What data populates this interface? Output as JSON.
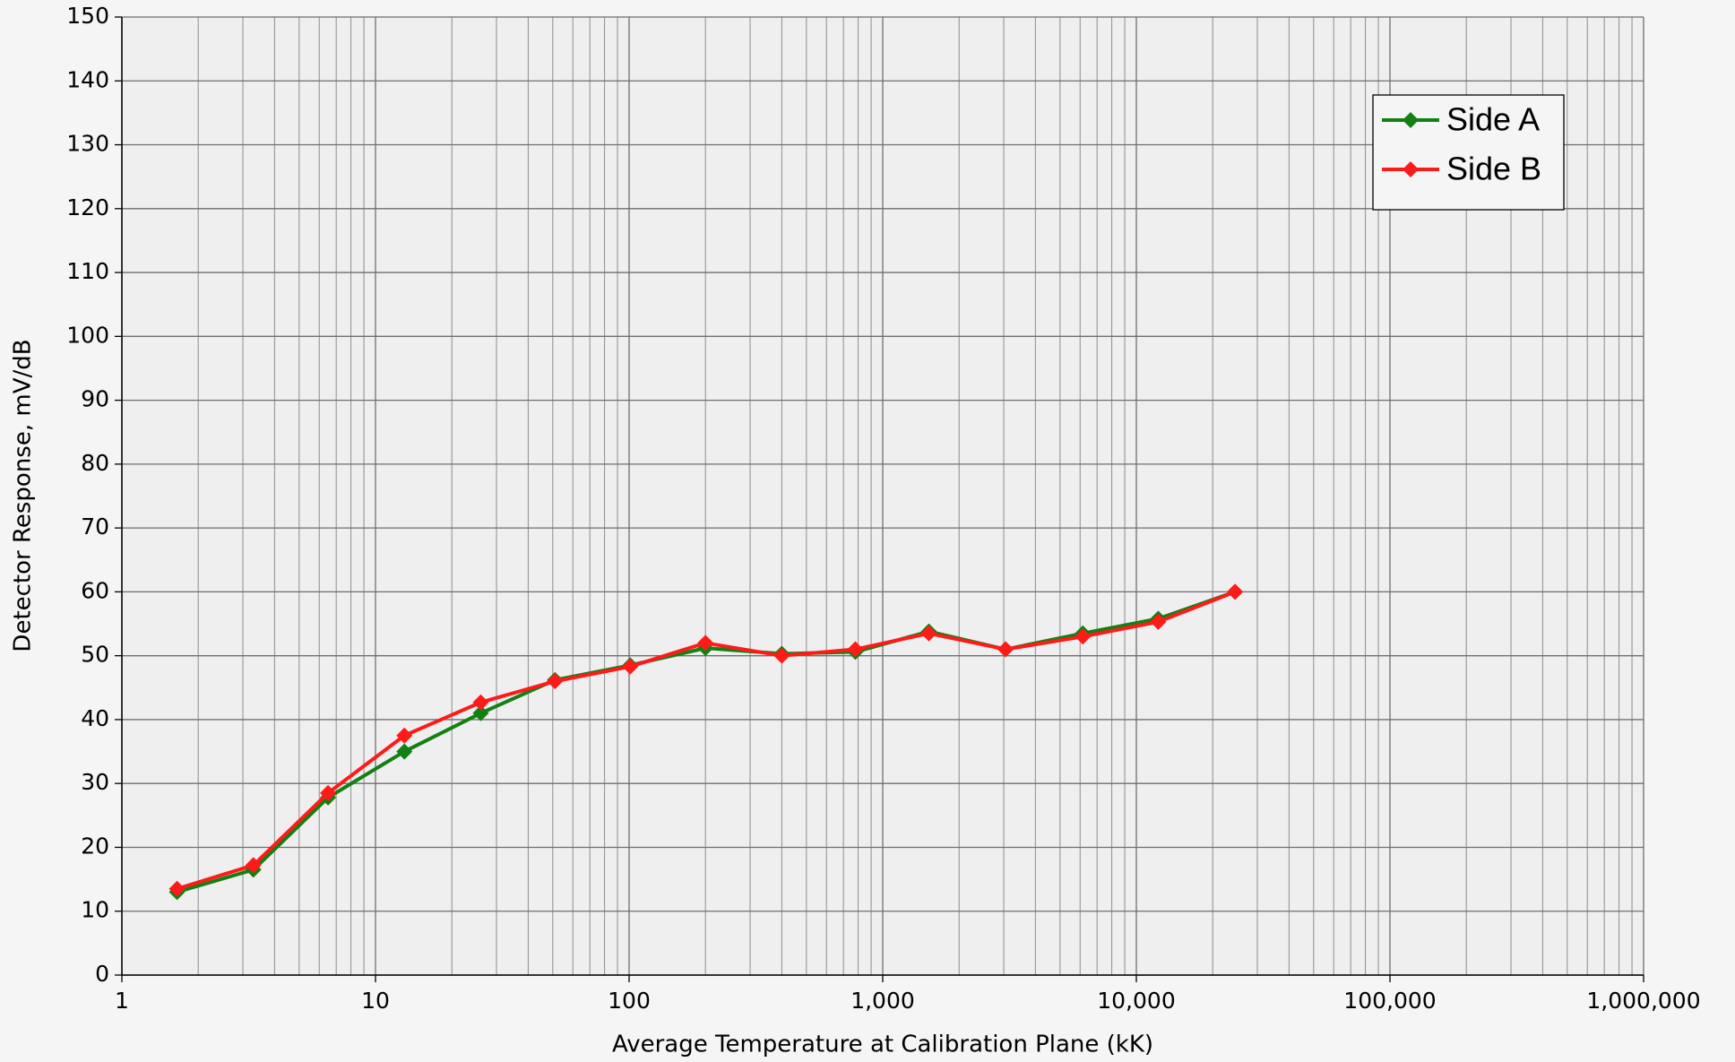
{
  "chart_data": {
    "type": "line",
    "xlabel": "Average Temperature at Calibration Plane (kK)",
    "ylabel": "Detector Response, mV/dB",
    "xscale": "log",
    "x": [
      1.65,
      3.3,
      6.5,
      13,
      26,
      51,
      101,
      200,
      400,
      780,
      1520,
      3050,
      6150,
      12200,
      24500
    ],
    "series": [
      {
        "name": "Side A",
        "color": "#138013",
        "values": [
          13,
          16.5,
          27.8,
          35,
          41,
          46.2,
          48.5,
          51.2,
          50.3,
          50.6,
          53.8,
          51,
          53.5,
          55.8,
          60
        ]
      },
      {
        "name": "Side B",
        "color": "#ff1a1a",
        "values": [
          13.5,
          17.2,
          28.5,
          37.5,
          42.7,
          46,
          48.3,
          52,
          50,
          51,
          53.5,
          51,
          53,
          55.3,
          60
        ]
      }
    ],
    "xlim": [
      1,
      1000000
    ],
    "xticks": [
      1,
      10,
      100,
      {
        "value": 1000,
        "label": "1,000"
      },
      {
        "value": 10000,
        "label": "10,000"
      },
      {
        "value": 100000,
        "label": "100,000"
      },
      {
        "value": 1000000,
        "label": "1,000,000"
      }
    ],
    "ylim": [
      0,
      150
    ],
    "yticks": [
      0,
      10,
      20,
      30,
      40,
      50,
      60,
      70,
      80,
      90,
      100,
      110,
      120,
      130,
      140,
      150
    ],
    "grid": true,
    "legend": "upper right"
  }
}
